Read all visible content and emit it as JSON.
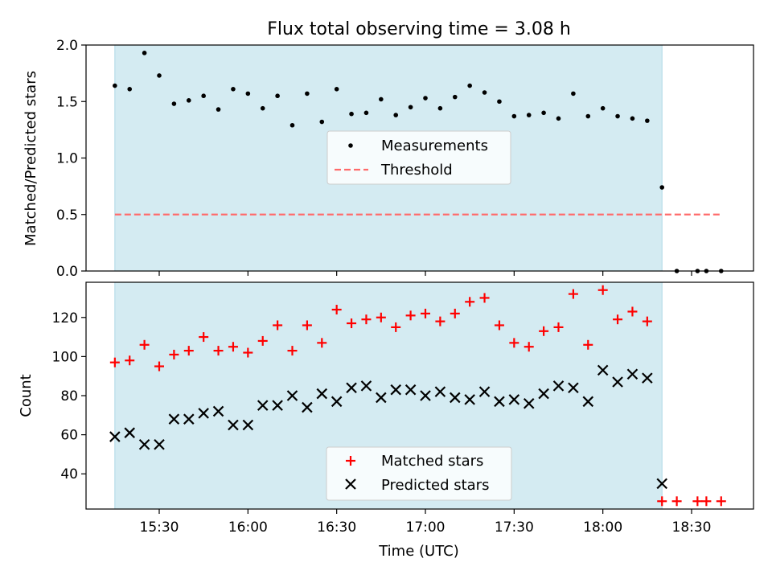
{
  "title": "Flux total observing time = 3.08 h",
  "colors": {
    "span": "#add8e6",
    "matched": "#ff0000",
    "predicted": "#000000",
    "threshold": "#ff6b6b",
    "measure": "#000000"
  },
  "chart_data": [
    {
      "type": "scatter",
      "ylabel": "Matched/Predicted stars",
      "ylim": [
        0,
        2.0
      ],
      "yticks": [
        "0.0",
        "0.5",
        "1.0",
        "1.5",
        "2.0"
      ],
      "observing_window": [
        "15:15",
        "18:20"
      ],
      "threshold": {
        "name": "Threshold",
        "value": 0.5,
        "x": [
          "15:15",
          "18:40"
        ]
      },
      "legend": {
        "position": "center",
        "entries": [
          "Measurements",
          "Threshold"
        ]
      },
      "series": [
        {
          "name": "Measurements",
          "x": [
            "15:15",
            "15:20",
            "15:25",
            "15:30",
            "15:35",
            "15:40",
            "15:45",
            "15:50",
            "15:55",
            "16:00",
            "16:05",
            "16:10",
            "16:15",
            "16:20",
            "16:25",
            "16:30",
            "16:35",
            "16:40",
            "16:45",
            "16:50",
            "16:55",
            "17:00",
            "17:05",
            "17:10",
            "17:15",
            "17:20",
            "17:25",
            "17:30",
            "17:35",
            "17:40",
            "17:45",
            "17:50",
            "17:55",
            "18:00",
            "18:05",
            "18:10",
            "18:15",
            "18:20",
            "18:25",
            "18:32",
            "18:35",
            "18:40"
          ],
          "y": [
            1.64,
            1.61,
            1.93,
            1.73,
            1.48,
            1.51,
            1.55,
            1.43,
            1.61,
            1.57,
            1.44,
            1.55,
            1.29,
            1.57,
            1.32,
            1.61,
            1.39,
            1.4,
            1.52,
            1.38,
            1.45,
            1.53,
            1.44,
            1.54,
            1.64,
            1.58,
            1.5,
            1.37,
            1.38,
            1.4,
            1.35,
            1.57,
            1.37,
            1.44,
            1.37,
            1.35,
            1.33,
            0.74,
            0.0,
            0.0,
            0.0,
            0.0
          ]
        }
      ]
    },
    {
      "type": "scatter",
      "xlabel": "Time (UTC)",
      "ylabel": "Count",
      "ylim": [
        22,
        138
      ],
      "yticks": [
        "40",
        "60",
        "80",
        "100",
        "120"
      ],
      "xticks": [
        "15:30",
        "16:00",
        "16:30",
        "17:00",
        "17:30",
        "18:00",
        "18:30"
      ],
      "observing_window": [
        "15:15",
        "18:20"
      ],
      "legend": {
        "position": "lower center",
        "entries": [
          "Matched stars",
          "Predicted stars"
        ]
      },
      "series": [
        {
          "name": "Matched stars",
          "marker": "+",
          "x": [
            "15:15",
            "15:20",
            "15:25",
            "15:30",
            "15:35",
            "15:40",
            "15:45",
            "15:50",
            "15:55",
            "16:00",
            "16:05",
            "16:10",
            "16:15",
            "16:20",
            "16:25",
            "16:30",
            "16:35",
            "16:40",
            "16:45",
            "16:50",
            "16:55",
            "17:00",
            "17:05",
            "17:10",
            "17:15",
            "17:20",
            "17:25",
            "17:30",
            "17:35",
            "17:40",
            "17:45",
            "17:50",
            "17:55",
            "18:00",
            "18:05",
            "18:10",
            "18:15",
            "18:20",
            "18:25",
            "18:32",
            "18:35",
            "18:40"
          ],
          "y": [
            97,
            98,
            106,
            95,
            101,
            103,
            110,
            103,
            105,
            102,
            108,
            116,
            103,
            116,
            107,
            124,
            117,
            119,
            120,
            115,
            121,
            122,
            118,
            122,
            128,
            130,
            116,
            107,
            105,
            113,
            115,
            132,
            106,
            134,
            119,
            123,
            118,
            26,
            26,
            26,
            26,
            26
          ]
        },
        {
          "name": "Predicted stars",
          "marker": "x",
          "x": [
            "15:15",
            "15:20",
            "15:25",
            "15:30",
            "15:35",
            "15:40",
            "15:45",
            "15:50",
            "15:55",
            "16:00",
            "16:05",
            "16:10",
            "16:15",
            "16:20",
            "16:25",
            "16:30",
            "16:35",
            "16:40",
            "16:45",
            "16:50",
            "16:55",
            "17:00",
            "17:05",
            "17:10",
            "17:15",
            "17:20",
            "17:25",
            "17:30",
            "17:35",
            "17:40",
            "17:45",
            "17:50",
            "17:55",
            "18:00",
            "18:05",
            "18:10",
            "18:15",
            "18:20"
          ],
          "y": [
            59,
            61,
            55,
            55,
            68,
            68,
            71,
            72,
            65,
            65,
            75,
            75,
            80,
            74,
            81,
            77,
            84,
            85,
            79,
            83,
            83,
            80,
            82,
            79,
            78,
            82,
            77,
            78,
            76,
            81,
            85,
            84,
            77,
            93,
            87,
            91,
            89,
            35
          ]
        }
      ]
    }
  ]
}
